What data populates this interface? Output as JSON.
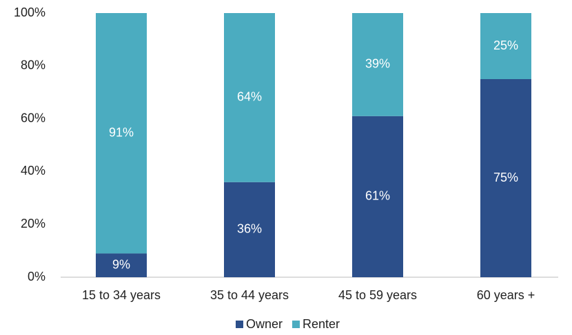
{
  "chart_data": {
    "type": "stacked_bar",
    "categories": [
      "15 to 34 years",
      "35 to 44 years",
      "45 to 59 years",
      "60 years +"
    ],
    "series": [
      {
        "name": "Owner",
        "color": "#2c4f8a",
        "values": [
          9,
          36,
          61,
          75
        ],
        "value_labels": [
          "9%",
          "36%",
          "61%",
          "75%"
        ]
      },
      {
        "name": "Renter",
        "color": "#4bacc0",
        "values": [
          91,
          64,
          39,
          25
        ],
        "value_labels": [
          "91%",
          "64%",
          "39%",
          "25%"
        ]
      }
    ],
    "ylim": [
      0,
      100
    ],
    "yticks": [
      {
        "value": 0,
        "label": "0%"
      },
      {
        "value": 20,
        "label": "20%"
      },
      {
        "value": 40,
        "label": "40%"
      },
      {
        "value": 60,
        "label": "60%"
      },
      {
        "value": 80,
        "label": "80%"
      },
      {
        "value": 100,
        "label": "100%"
      }
    ],
    "grid": false,
    "legend": "bottom"
  }
}
